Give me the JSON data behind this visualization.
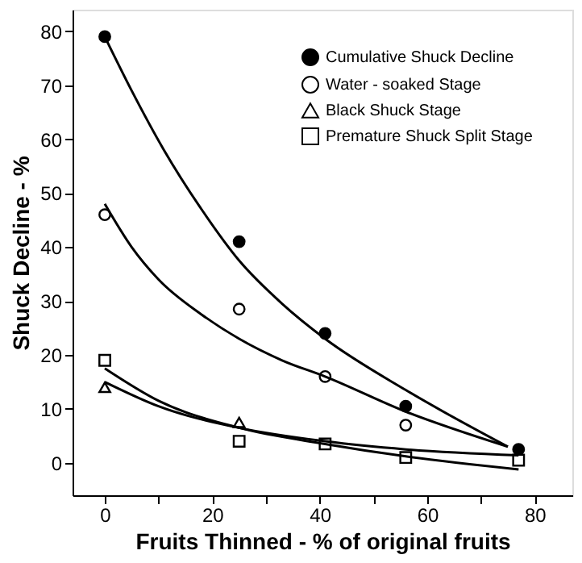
{
  "chart_data": {
    "type": "scatter",
    "xlabel": "Fruits Thinned - % of original fruits",
    "ylabel": "Shuck Decline - %",
    "xlim": [
      -6,
      87
    ],
    "xticks": [
      0,
      {
        "value": 10,
        "label": null
      },
      20,
      {
        "value": 30,
        "label": null
      },
      40,
      {
        "value": 50,
        "label": null
      },
      60,
      {
        "value": 70,
        "label": null
      },
      80
    ],
    "ylim": [
      -6,
      84
    ],
    "yticks": [
      0,
      10,
      20,
      30,
      40,
      50,
      60,
      70,
      80
    ],
    "grid": false,
    "legend": "top right",
    "series": [
      {
        "name": "Cumulative Shuck Decline",
        "color": "#000000",
        "marker": "circle",
        "x": [
          0,
          25,
          41,
          56,
          77
        ],
        "values": [
          79,
          41,
          24,
          10.5,
          2.5
        ]
      },
      {
        "name": "Water - soaked Stage",
        "color": "#ffffff",
        "marker": "circle",
        "x": [
          0,
          25,
          41,
          56
        ],
        "values": [
          46,
          28.5,
          16,
          7
        ]
      },
      {
        "name": "Black Shuck Stage",
        "color": "#ffffff",
        "marker": "triangle",
        "x": [
          0,
          25
        ],
        "values": [
          14,
          7.5
        ]
      },
      {
        "name": "Premature Shuck Split Stage",
        "color": "#ffffff",
        "marker": "square",
        "x": [
          0,
          25,
          41,
          56,
          77
        ],
        "values": [
          19,
          4,
          3.5,
          1,
          0.5
        ]
      },
      {
        "type": "line",
        "color": "#000000",
        "line_style": "solid",
        "x": [
          0,
          5,
          11,
          18,
          25,
          33,
          41,
          56,
          75
        ],
        "values": [
          79,
          69,
          58,
          47,
          37.5,
          29.5,
          23,
          13.5,
          3
        ]
      },
      {
        "type": "line",
        "color": "#000000",
        "line_style": "solid",
        "x": [
          0,
          5,
          10,
          18,
          25,
          33,
          41,
          56,
          75
        ],
        "values": [
          48,
          40,
          34,
          27.5,
          23,
          19,
          16,
          9.5,
          3
        ]
      },
      {
        "type": "line",
        "color": "#000000",
        "line_style": "solid",
        "x": [
          0,
          10,
          25,
          41,
          56,
          77
        ],
        "values": [
          15,
          10.5,
          6.5,
          4,
          2.5,
          1.4
        ]
      },
      {
        "type": "line",
        "color": "#000000",
        "line_style": "solid",
        "x": [
          0,
          10,
          25,
          41,
          56,
          77
        ],
        "values": [
          17.5,
          11.5,
          6.5,
          3.5,
          1.2,
          -1.2
        ]
      }
    ]
  }
}
